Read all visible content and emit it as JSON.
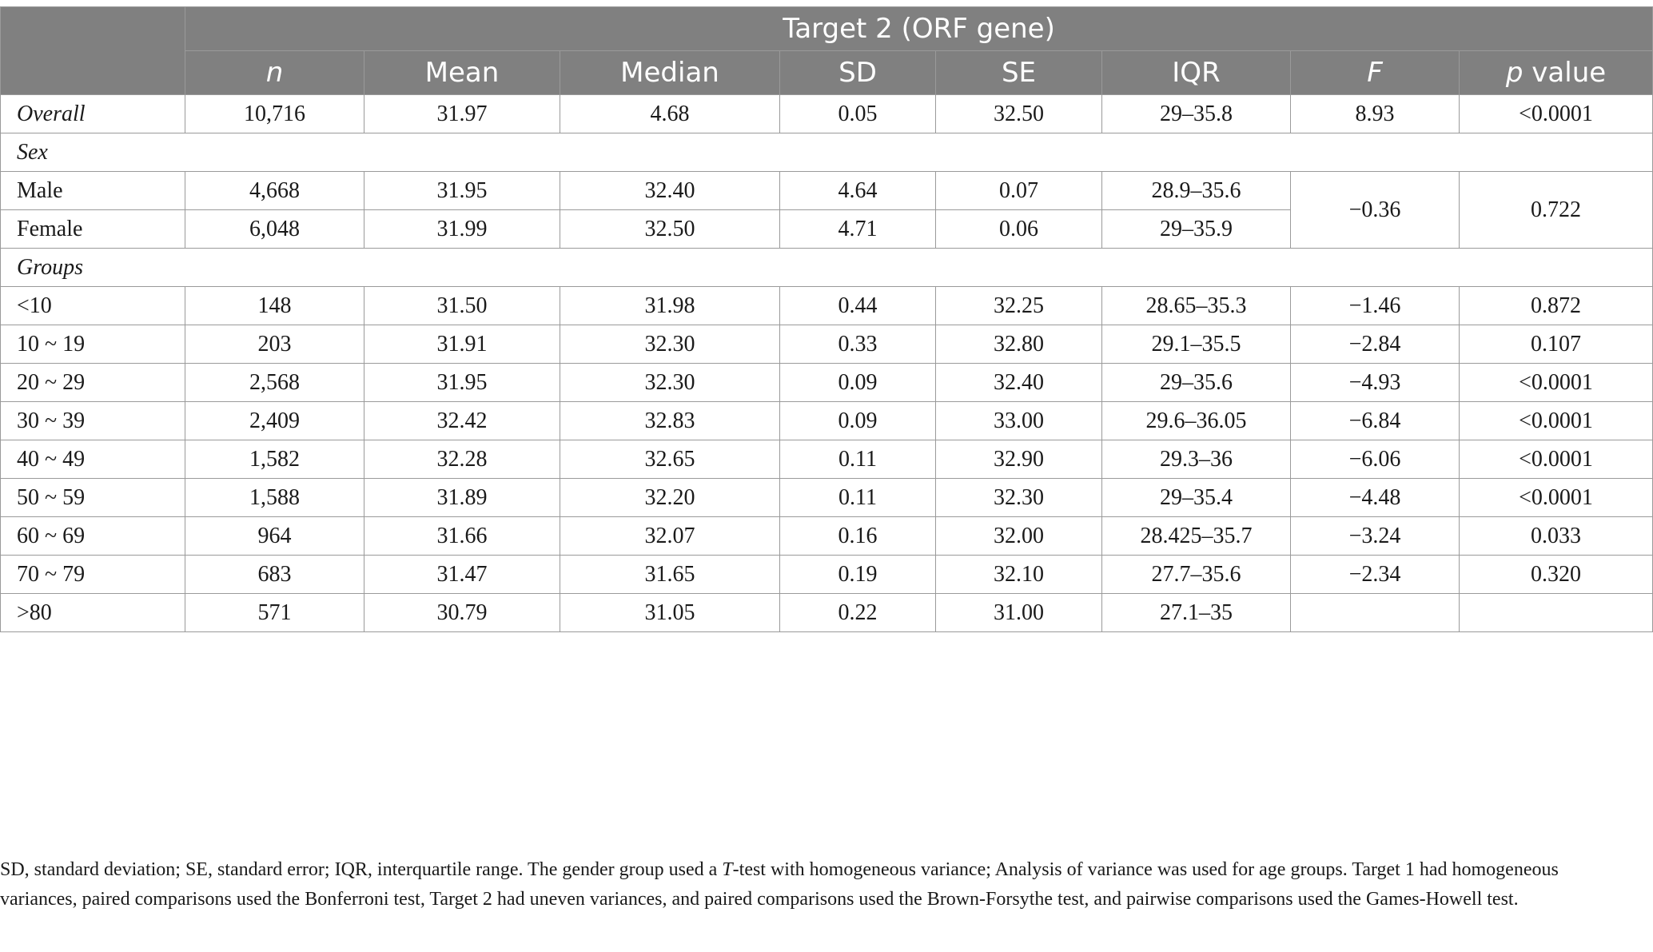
{
  "table": {
    "title": "Target 2 (ORF gene)",
    "columns": [
      "n",
      "Mean",
      "Median",
      "SD",
      "SE",
      "IQR",
      "F",
      "p value"
    ],
    "col_p_italic": "p",
    "col_p_rest": " value",
    "overall": {
      "label": "Overall",
      "n": "10,716",
      "mean": "31.97",
      "median": "4.68",
      "sd": "0.05",
      "se": "32.50",
      "iqr": "29–35.8",
      "f": "8.93",
      "p": "<0.0001"
    },
    "sex_section": "Sex",
    "sex_rows": [
      {
        "label": "Male",
        "n": "4,668",
        "mean": "31.95",
        "median": "32.40",
        "sd": "4.64",
        "se": "0.07",
        "iqr": "28.9–35.6"
      },
      {
        "label": "Female",
        "n": "6,048",
        "mean": "31.99",
        "median": "32.50",
        "sd": "4.71",
        "se": "0.06",
        "iqr": "29–35.9"
      }
    ],
    "sex_f": "−0.36",
    "sex_p": "0.722",
    "groups_section": "Groups",
    "group_rows": [
      {
        "label": "<10",
        "n": "148",
        "mean": "31.50",
        "median": "31.98",
        "sd": "0.44",
        "se": "32.25",
        "iqr": "28.65–35.3",
        "f": "−1.46",
        "p": "0.872"
      },
      {
        "label": "10 ~ 19",
        "n": "203",
        "mean": "31.91",
        "median": "32.30",
        "sd": "0.33",
        "se": "32.80",
        "iqr": "29.1–35.5",
        "f": "−2.84",
        "p": "0.107"
      },
      {
        "label": "20 ~ 29",
        "n": "2,568",
        "mean": "31.95",
        "median": "32.30",
        "sd": "0.09",
        "se": "32.40",
        "iqr": "29–35.6",
        "f": "−4.93",
        "p": "<0.0001"
      },
      {
        "label": "30 ~ 39",
        "n": "2,409",
        "mean": "32.42",
        "median": "32.83",
        "sd": "0.09",
        "se": "33.00",
        "iqr": "29.6–36.05",
        "f": "−6.84",
        "p": "<0.0001"
      },
      {
        "label": "40 ~ 49",
        "n": "1,582",
        "mean": "32.28",
        "median": "32.65",
        "sd": "0.11",
        "se": "32.90",
        "iqr": "29.3–36",
        "f": "−6.06",
        "p": "<0.0001"
      },
      {
        "label": "50 ~ 59",
        "n": "1,588",
        "mean": "31.89",
        "median": "32.20",
        "sd": "0.11",
        "se": "32.30",
        "iqr": "29–35.4",
        "f": "−4.48",
        "p": "<0.0001"
      },
      {
        "label": "60 ~ 69",
        "n": "964",
        "mean": "31.66",
        "median": "32.07",
        "sd": "0.16",
        "se": "32.00",
        "iqr": "28.425–35.7",
        "f": "−3.24",
        "p": "0.033"
      },
      {
        "label": "70 ~ 79",
        "n": "683",
        "mean": "31.47",
        "median": "31.65",
        "sd": "0.19",
        "se": "32.10",
        "iqr": "27.7–35.6",
        "f": "−2.34",
        "p": "0.320"
      },
      {
        "label": ">80",
        "n": "571",
        "mean": "30.79",
        "median": "31.05",
        "sd": "0.22",
        "se": "31.00",
        "iqr": "27.1–35",
        "f": "",
        "p": ""
      }
    ]
  },
  "footnote": {
    "part1": "SD, standard deviation; SE, standard error; IQR, interquartile range. The gender group used a ",
    "t_italic": "T",
    "part2": "-test with homogeneous variance; Analysis of variance was used for age groups. Target 1 had homogeneous variances, paired comparisons used the Bonferroni test, Target 2 had uneven variances, and paired comparisons used the Brown-Forsythe test, and pairwise comparisons used the Games-Howell test."
  },
  "colors": {
    "header_bg": "#808080",
    "header_text": "#ffffff",
    "border": "#9a9a9a"
  }
}
